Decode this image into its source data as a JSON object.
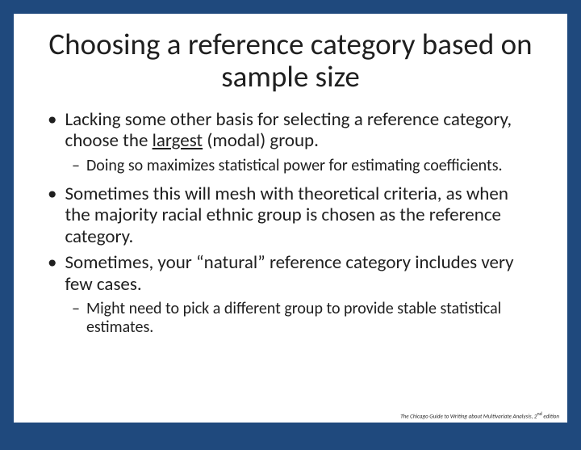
{
  "slide": {
    "background_outer": "#1f497d",
    "background_inner": "#ffffff",
    "title": "Choosing a reference category based on sample size",
    "title_fontsize": 37,
    "body_fontsize_l1": 23,
    "body_fontsize_l2": 20,
    "bullets": [
      {
        "level": 1,
        "text_before": "Lacking some other basis for selecting a reference category, choose the ",
        "underlined": "largest",
        "text_after": " (modal) group."
      },
      {
        "level": 2,
        "text": "Doing so maximizes statistical power for estimating coefficients."
      },
      {
        "level": 1,
        "text": "Sometimes this will mesh with theoretical criteria, as when the majority racial ethnic group is chosen as the reference category."
      },
      {
        "level": 1,
        "text": "Sometimes, your “natural” reference category includes very few cases."
      },
      {
        "level": 2,
        "text": "Might need to pick a different group to provide stable statistical estimates."
      }
    ],
    "footer_prefix": "The Chicago Guide to Writing about Multivariate Analysis, 2",
    "footer_ord": "nd",
    "footer_suffix": " edition"
  },
  "markers": {
    "l1": "•",
    "l2": "–"
  }
}
